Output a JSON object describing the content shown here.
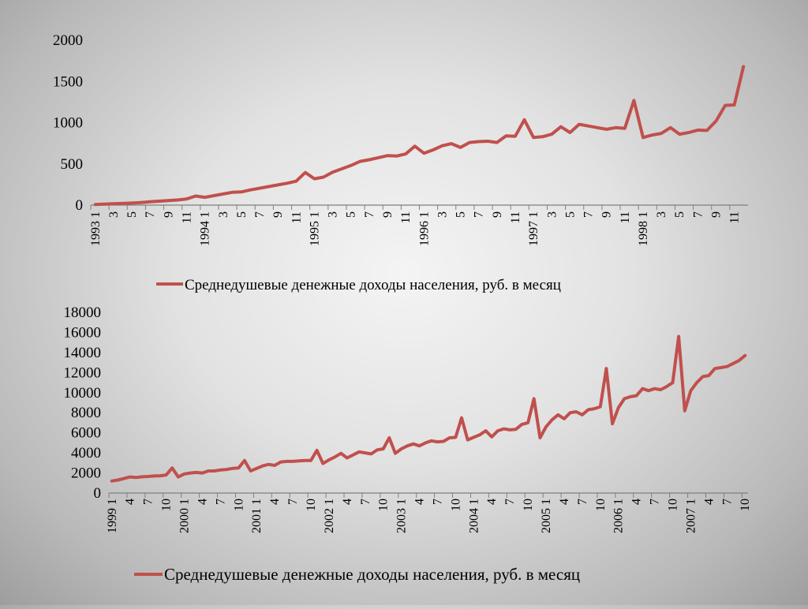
{
  "chart_data": [
    {
      "type": "line",
      "title": "",
      "xlabel": "",
      "ylabel": "",
      "ylim": [
        0,
        2000
      ],
      "yticks": [
        "0",
        "500",
        "1000",
        "1500",
        "2000"
      ],
      "grid": false,
      "legend_position": "bottom",
      "color": "#c0504d",
      "x_labels": [
        "1993 1",
        "3",
        "5",
        "7",
        "9",
        "11",
        "1994 1",
        "3",
        "5",
        "7",
        "9",
        "11",
        "1995 1",
        "3",
        "5",
        "7",
        "9",
        "11",
        "1996 1",
        "3",
        "5",
        "7",
        "9",
        "11",
        "1997 1",
        "3",
        "5",
        "7",
        "9",
        "11",
        "1998 1",
        "3",
        "5",
        "7",
        "9",
        "11"
      ],
      "series": [
        {
          "name": "Среднедушевые денежные доходы населения, руб. в месяц",
          "values": [
            8,
            12,
            16,
            20,
            25,
            32,
            40,
            48,
            55,
            62,
            75,
            110,
            95,
            115,
            135,
            155,
            160,
            185,
            205,
            225,
            245,
            265,
            290,
            395,
            320,
            340,
            400,
            440,
            480,
            530,
            550,
            575,
            600,
            595,
            620,
            715,
            630,
            670,
            720,
            745,
            700,
            760,
            770,
            775,
            760,
            840,
            835,
            1035,
            820,
            830,
            860,
            950,
            880,
            980,
            960,
            940,
            920,
            940,
            930,
            1270,
            820,
            850,
            870,
            940,
            860,
            880,
            910,
            905,
            1020,
            1210,
            1215,
            1680
          ]
        }
      ]
    },
    {
      "type": "line",
      "title": "",
      "xlabel": "",
      "ylabel": "",
      "ylim": [
        0,
        18000
      ],
      "yticks": [
        "0",
        "2000",
        "4000",
        "6000",
        "8000",
        "10000",
        "12000",
        "14000",
        "16000",
        "18000"
      ],
      "grid": false,
      "legend_position": "bottom",
      "color": "#c0504d",
      "x_labels": [
        "1999 1",
        "4",
        "7",
        "10",
        "2000 1",
        "4",
        "7",
        "10",
        "2001 1",
        "4",
        "7",
        "10",
        "2002 1",
        "4",
        "7",
        "10",
        "2003 1",
        "4",
        "7",
        "10",
        "2004 1",
        "4",
        "7",
        "10",
        "2005 1",
        "4",
        "7",
        "10",
        "2006 1",
        "4",
        "7",
        "10",
        "2007 1",
        "4",
        "7",
        "10"
      ],
      "series": [
        {
          "name": "Среднедушевые денежные доходы населения, руб. в месяц",
          "values": [
            1200,
            1300,
            1450,
            1600,
            1550,
            1620,
            1650,
            1700,
            1720,
            1800,
            2500,
            1600,
            1900,
            2000,
            2050,
            2000,
            2200,
            2200,
            2300,
            2350,
            2450,
            2500,
            3250,
            2200,
            2450,
            2700,
            2850,
            2750,
            3100,
            3150,
            3150,
            3200,
            3250,
            3250,
            4250,
            2950,
            3300,
            3600,
            3950,
            3500,
            3800,
            4100,
            4000,
            3900,
            4300,
            4400,
            5500,
            3950,
            4400,
            4700,
            4900,
            4700,
            5000,
            5200,
            5100,
            5150,
            5500,
            5550,
            7500,
            5300,
            5550,
            5800,
            6200,
            5600,
            6200,
            6400,
            6300,
            6350,
            6850,
            7000,
            9400,
            5500,
            6600,
            7300,
            7800,
            7400,
            8000,
            8100,
            7800,
            8300,
            8400,
            8600,
            12400,
            6900,
            8500,
            9400,
            9600,
            9700,
            10400,
            10200,
            10400,
            10300,
            10600,
            11000,
            15600,
            8200,
            10200,
            11000,
            11600,
            11700,
            12400,
            12500,
            12600,
            12900,
            13200,
            13700
          ]
        }
      ]
    }
  ]
}
